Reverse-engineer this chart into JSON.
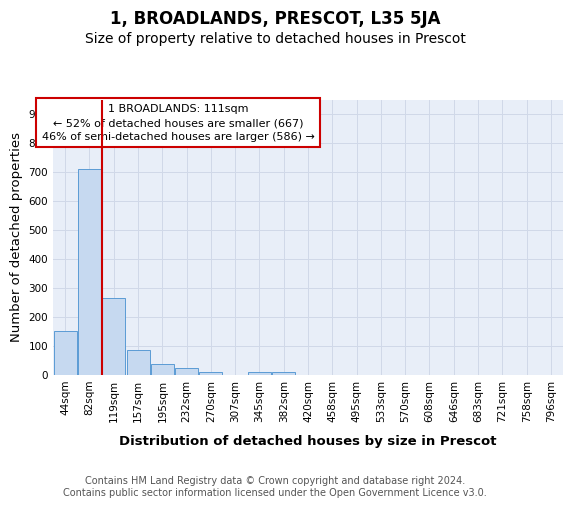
{
  "title": "1, BROADLANDS, PRESCOT, L35 5JA",
  "subtitle": "Size of property relative to detached houses in Prescot",
  "xlabel": "Distribution of detached houses by size in Prescot",
  "ylabel": "Number of detached properties",
  "categories": [
    "44sqm",
    "82sqm",
    "119sqm",
    "157sqm",
    "195sqm",
    "232sqm",
    "270sqm",
    "307sqm",
    "345sqm",
    "382sqm",
    "420sqm",
    "458sqm",
    "495sqm",
    "533sqm",
    "570sqm",
    "608sqm",
    "646sqm",
    "683sqm",
    "721sqm",
    "758sqm",
    "796sqm"
  ],
  "values": [
    150,
    710,
    263,
    85,
    37,
    23,
    10,
    0,
    10,
    10,
    0,
    0,
    0,
    0,
    0,
    0,
    0,
    0,
    0,
    0,
    0
  ],
  "bar_color": "#c6d9f0",
  "bar_edge_color": "#5b9bd5",
  "red_line_x": 1.5,
  "red_line_color": "#cc0000",
  "annotation_line1": "1 BROADLANDS: 111sqm",
  "annotation_line2": "← 52% of detached houses are smaller (667)",
  "annotation_line3": "46% of semi-detached houses are larger (586) →",
  "annotation_box_facecolor": "#ffffff",
  "annotation_box_edgecolor": "#cc0000",
  "ylim": [
    0,
    950
  ],
  "yticks": [
    0,
    100,
    200,
    300,
    400,
    500,
    600,
    700,
    800,
    900
  ],
  "grid_color": "#d0d8e8",
  "bg_color": "#e8eef8",
  "footer": "Contains HM Land Registry data © Crown copyright and database right 2024.\nContains public sector information licensed under the Open Government Licence v3.0.",
  "title_fontsize": 12,
  "subtitle_fontsize": 10,
  "axis_label_fontsize": 9.5,
  "tick_fontsize": 7.5,
  "footer_fontsize": 7,
  "annotation_fontsize": 8
}
